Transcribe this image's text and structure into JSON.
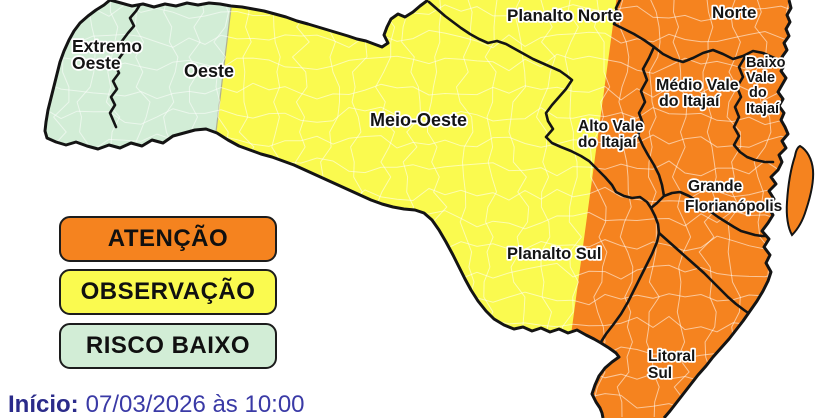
{
  "map": {
    "region_labels": {
      "extremo_oeste": {
        "lines": [
          "Extremo",
          "Oeste"
        ]
      },
      "oeste": {
        "lines": [
          "Oeste"
        ]
      },
      "meio_oeste": {
        "lines": [
          "Meio-Oeste"
        ]
      },
      "planalto_norte": {
        "lines": [
          "Planalto Norte"
        ]
      },
      "norte": {
        "lines": [
          "Norte"
        ]
      },
      "medio_vale_do_itajai": {
        "lines": [
          "Médio Vale",
          "do Itajaí"
        ]
      },
      "baixo_vale_do_itajai": {
        "lines": [
          "Baixo",
          "Vale",
          "do",
          "Itajaí"
        ]
      },
      "alto_vale_do_itajai": {
        "lines": [
          "Alto Vale",
          "do Itajaí"
        ]
      },
      "grande_florianopolis": {
        "lines": [
          "Grande",
          "Florianópolis"
        ]
      },
      "planalto_sul": {
        "lines": [
          "Planalto Sul"
        ]
      },
      "litoral_sul": {
        "lines": [
          "Litoral",
          "Sul"
        ]
      }
    },
    "colors": {
      "atencao": "#F5831F",
      "observacao": "#FAFA4F",
      "risco_baixo": "#D2EDD6",
      "macro_border": "#141414",
      "municipal_line": "rgba(255,255,255,0.55)",
      "inicio_text": "#2B2B8A",
      "date_text": "#3A3AA6"
    }
  },
  "legend": {
    "items": [
      {
        "label": "ATENÇÃO",
        "color": "#F5831F"
      },
      {
        "label": "OBSERVAÇÃO",
        "color": "#FAFA4F"
      },
      {
        "label": "RISCO BAIXO",
        "color": "#D2EDD6"
      }
    ]
  },
  "footer": {
    "label": "Início:",
    "value": "07/03/2026 às 10:00"
  }
}
